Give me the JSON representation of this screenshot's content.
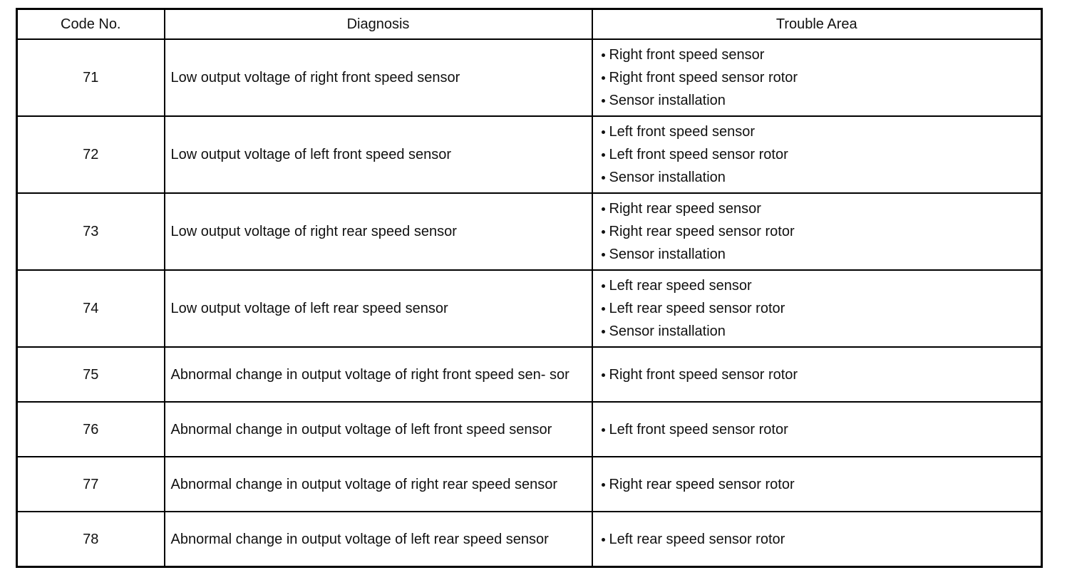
{
  "table": {
    "headers": {
      "code": "Code No.",
      "diagnosis": "Diagnosis",
      "trouble_area": "Trouble Area"
    },
    "rows": [
      {
        "code": "71",
        "diagnosis": "Low output voltage of right front speed sensor",
        "trouble_area": [
          "Right front speed sensor",
          "Right front speed sensor rotor",
          "Sensor installation"
        ]
      },
      {
        "code": "72",
        "diagnosis": "Low output voltage of left front speed sensor",
        "trouble_area": [
          "Left front speed sensor",
          "Left front speed sensor rotor",
          "Sensor installation"
        ]
      },
      {
        "code": "73",
        "diagnosis": "Low output voltage of right rear speed sensor",
        "trouble_area": [
          "Right rear speed sensor",
          "Right rear speed sensor rotor",
          "Sensor installation"
        ]
      },
      {
        "code": "74",
        "diagnosis": "Low output voltage of left rear speed sensor",
        "trouble_area": [
          "Left rear speed sensor",
          "Left rear speed sensor rotor",
          "Sensor installation"
        ]
      },
      {
        "code": "75",
        "diagnosis": "Abnormal change in output voltage of right front speed sen- sor",
        "trouble_area": [
          "Right front speed sensor rotor"
        ]
      },
      {
        "code": "76",
        "diagnosis": "Abnormal change in output voltage of left front speed sensor",
        "trouble_area": [
          "Left front speed sensor rotor"
        ]
      },
      {
        "code": "77",
        "diagnosis": "Abnormal change in output voltage of right rear speed sensor",
        "trouble_area": [
          "Right rear speed sensor rotor"
        ]
      },
      {
        "code": "78",
        "diagnosis": "Abnormal change in output voltage of left rear speed sensor",
        "trouble_area": [
          "Left rear speed sensor rotor"
        ]
      }
    ]
  }
}
